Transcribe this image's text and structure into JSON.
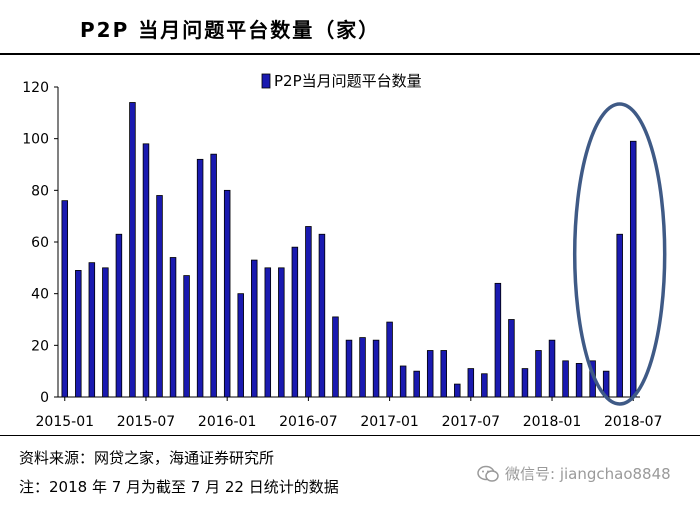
{
  "title": "P2P 当月问题平台数量（家）",
  "source_text": "资料来源：网贷之家，海通证券研究所",
  "note_text": "注：2018 年 7 月为截至 7 月 22 日统计的数据",
  "watermark_text": "微信号: jiangchao8848",
  "colors": {
    "bar": "#1a1ab0",
    "bar_edge": "#000000",
    "ellipse": "#3f5a86"
  },
  "chart_data": {
    "type": "bar",
    "title": "",
    "legend": "P2P当月问题平台数量",
    "xlabel": "",
    "ylabel": "",
    "ylim": [
      0,
      120
    ],
    "yticks": [
      0,
      20,
      40,
      60,
      80,
      100,
      120
    ],
    "categories": [
      "2015-01",
      "2015-02",
      "2015-03",
      "2015-04",
      "2015-05",
      "2015-06",
      "2015-07",
      "2015-08",
      "2015-09",
      "2015-10",
      "2015-11",
      "2015-12",
      "2016-01",
      "2016-02",
      "2016-03",
      "2016-04",
      "2016-05",
      "2016-06",
      "2016-07",
      "2016-08",
      "2016-09",
      "2016-10",
      "2016-11",
      "2016-12",
      "2017-01",
      "2017-02",
      "2017-03",
      "2017-04",
      "2017-05",
      "2017-06",
      "2017-07",
      "2017-08",
      "2017-09",
      "2017-10",
      "2017-11",
      "2017-12",
      "2018-01",
      "2018-02",
      "2018-03",
      "2018-04",
      "2018-05",
      "2018-06",
      "2018-07"
    ],
    "x_tick_labels": [
      "2015-01",
      "2015-07",
      "2016-01",
      "2016-07",
      "2017-01",
      "2017-07",
      "2018-01",
      "2018-07"
    ],
    "values": [
      76,
      49,
      52,
      50,
      63,
      114,
      98,
      78,
      54,
      47,
      92,
      94,
      80,
      40,
      53,
      50,
      50,
      58,
      66,
      63,
      31,
      22,
      23,
      22,
      29,
      12,
      10,
      18,
      18,
      5,
      11,
      9,
      44,
      30,
      11,
      18,
      22,
      14,
      13,
      14,
      10,
      63,
      99
    ],
    "annotation": "ellipse highlighting 2018-05 to 2018-07"
  }
}
